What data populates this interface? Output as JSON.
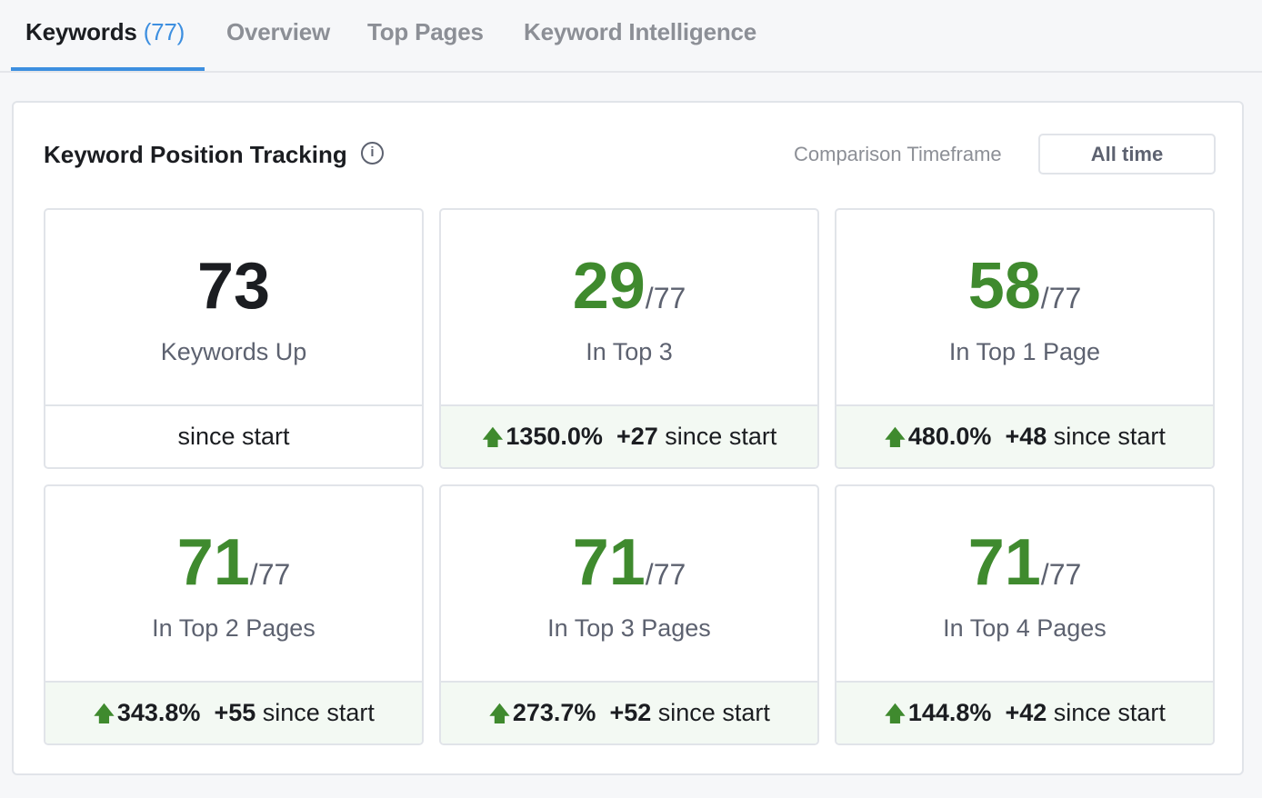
{
  "tabs": [
    {
      "label": "Keywords",
      "count": "(77)"
    },
    {
      "label": "Overview"
    },
    {
      "label": "Top Pages"
    },
    {
      "label": "Keyword Intelligence"
    }
  ],
  "panel": {
    "title": "Keyword Position Tracking",
    "info_icon": "info-circle-icon",
    "comparison_label": "Comparison Timeframe",
    "comparison_value": "All time"
  },
  "colors": {
    "accent": "#3d8fe0",
    "positive": "#3f8a2e"
  },
  "cards": [
    {
      "value": "73",
      "denom": "",
      "label": "Keywords Up",
      "pct": "",
      "delta": "",
      "suffix": "since start"
    },
    {
      "value": "29",
      "denom": "/77",
      "label": "In Top 3",
      "pct": "1350.0%",
      "delta": "+27",
      "suffix": "since start"
    },
    {
      "value": "58",
      "denom": "/77",
      "label": "In Top 1 Page",
      "pct": "480.0%",
      "delta": "+48",
      "suffix": "since start"
    },
    {
      "value": "71",
      "denom": "/77",
      "label": "In Top 2 Pages",
      "pct": "343.8%",
      "delta": "+55",
      "suffix": "since start"
    },
    {
      "value": "71",
      "denom": "/77",
      "label": "In Top 3 Pages",
      "pct": "273.7%",
      "delta": "+52",
      "suffix": "since start"
    },
    {
      "value": "71",
      "denom": "/77",
      "label": "In Top 4 Pages",
      "pct": "144.8%",
      "delta": "+42",
      "suffix": "since start"
    }
  ]
}
